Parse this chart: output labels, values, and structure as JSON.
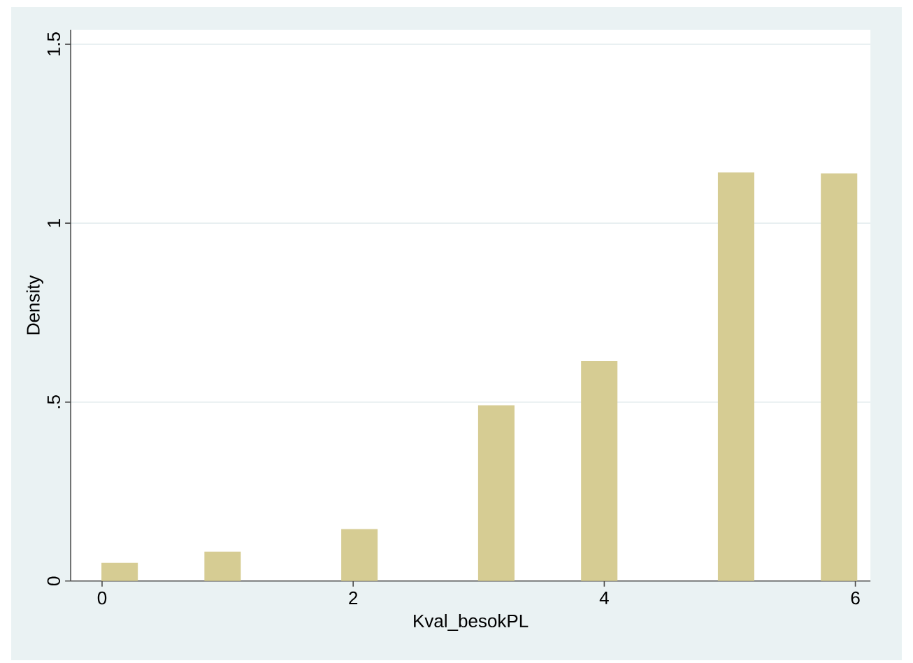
{
  "chart_data": {
    "type": "bar",
    "xlabel": "Kval_besokPL",
    "ylabel": "Density",
    "x": [
      0.14,
      0.96,
      2.05,
      3.14,
      3.96,
      5.05,
      5.87
    ],
    "values": [
      0.051,
      0.082,
      0.145,
      0.491,
      0.615,
      1.142,
      1.139
    ],
    "color": "#d6cc93",
    "xlim": [
      -0.25,
      6.12
    ],
    "ylim": [
      0,
      1.54
    ],
    "xticks": [
      0,
      2,
      4,
      6
    ],
    "yticks": [
      0,
      {
        "value": 0.5,
        "label": ".5"
      },
      1,
      1.5
    ],
    "grid": "y"
  }
}
